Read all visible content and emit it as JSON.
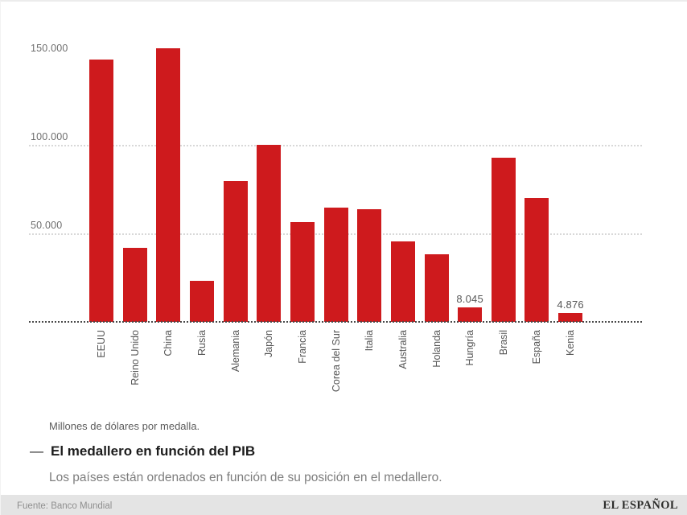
{
  "chart_data": {
    "type": "bar",
    "title": "El medallero en función del PIB",
    "subtitle": "Los países están ordenados en función de su posición en el medallero.",
    "note": "Millones de dólares por medalla.",
    "categories": [
      "EEUU",
      "Reino Unido",
      "China",
      "Rusia",
      "Alemania",
      "Japón",
      "Francia",
      "Corea del Sur",
      "Italia",
      "Australia",
      "Holanda",
      "Hungría",
      "Brasil",
      "España",
      "Kenia"
    ],
    "values": [
      148000,
      42000,
      154500,
      23000,
      79400,
      100000,
      56200,
      64500,
      63800,
      45300,
      38200,
      8045,
      92600,
      70000,
      4876
    ],
    "data_labels": [
      null,
      null,
      null,
      null,
      null,
      null,
      null,
      null,
      null,
      null,
      null,
      "8.045",
      null,
      null,
      "4.876"
    ],
    "yticks": [
      {
        "label": "150.000",
        "value": 150000,
        "gridline": false
      },
      {
        "label": "100.000",
        "value": 100000,
        "gridline": true
      },
      {
        "label": "50.000",
        "value": 50000,
        "gridline": true
      }
    ],
    "ylim": [
      0,
      155000
    ],
    "bar_color": "#ce1a1d",
    "grid": "horizontal-dotted",
    "legend": "none",
    "x_label_rotation": -90
  },
  "title_block": {
    "dash": "—"
  },
  "footer": {
    "source": "Fuente: Banco Mundial",
    "brand": "EL ESPAÑOL"
  }
}
